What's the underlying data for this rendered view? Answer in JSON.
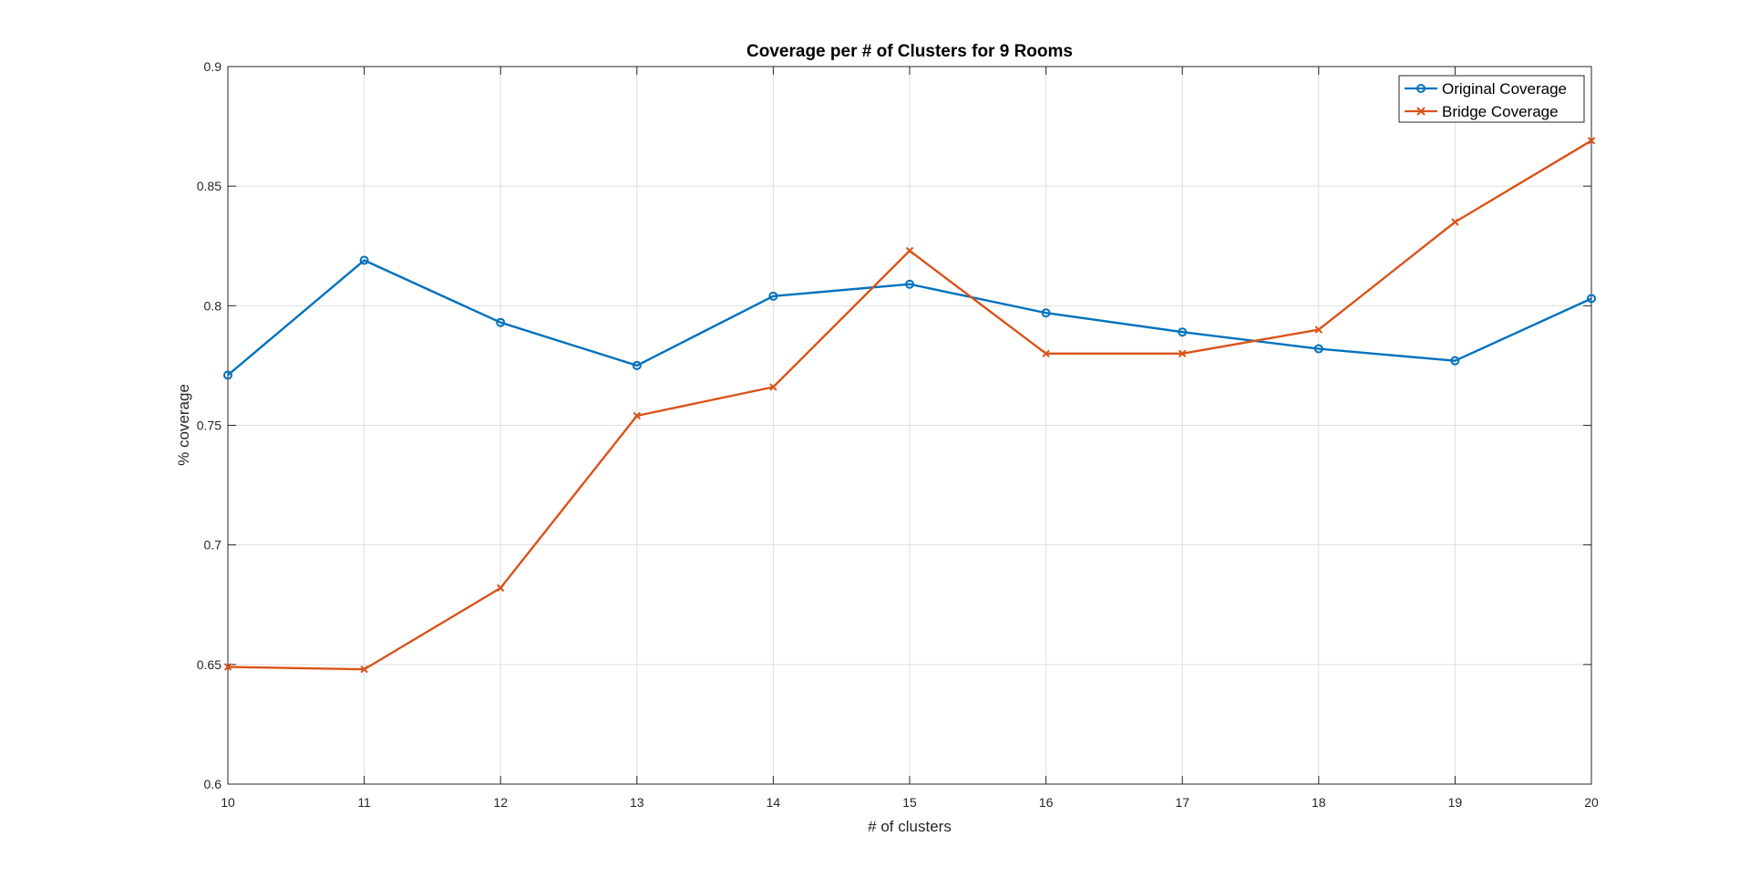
{
  "chart_data": {
    "type": "line",
    "title": "Coverage per # of Clusters for 9 Rooms",
    "xlabel": "# of clusters",
    "ylabel": "% coverage",
    "x": [
      10,
      11,
      12,
      13,
      14,
      15,
      16,
      17,
      18,
      19,
      20
    ],
    "xlim": [
      10,
      20
    ],
    "ylim": [
      0.6,
      0.9
    ],
    "xticks": [
      10,
      11,
      12,
      13,
      14,
      15,
      16,
      17,
      18,
      19,
      20
    ],
    "xtick_labels": [
      "10",
      "11",
      "12",
      "13",
      "14",
      "15",
      "16",
      "17",
      "18",
      "19",
      "20"
    ],
    "yticks": [
      0.6,
      0.65,
      0.7,
      0.75,
      0.8,
      0.85,
      0.9
    ],
    "ytick_labels": [
      "0.6",
      "0.65",
      "0.7",
      "0.75",
      "0.8",
      "0.85",
      "0.9"
    ],
    "grid": true,
    "legend_position": "top-right",
    "series": [
      {
        "name": "Original Coverage",
        "color": "#0072BD",
        "marker": "circle",
        "values": [
          0.771,
          0.819,
          0.793,
          0.775,
          0.804,
          0.809,
          0.797,
          0.789,
          0.782,
          0.777,
          0.803
        ]
      },
      {
        "name": "Bridge Coverage",
        "color": "#D95319",
        "marker": "x",
        "values": [
          0.649,
          0.648,
          0.682,
          0.754,
          0.766,
          0.823,
          0.78,
          0.78,
          0.79,
          0.835,
          0.869
        ]
      }
    ]
  }
}
